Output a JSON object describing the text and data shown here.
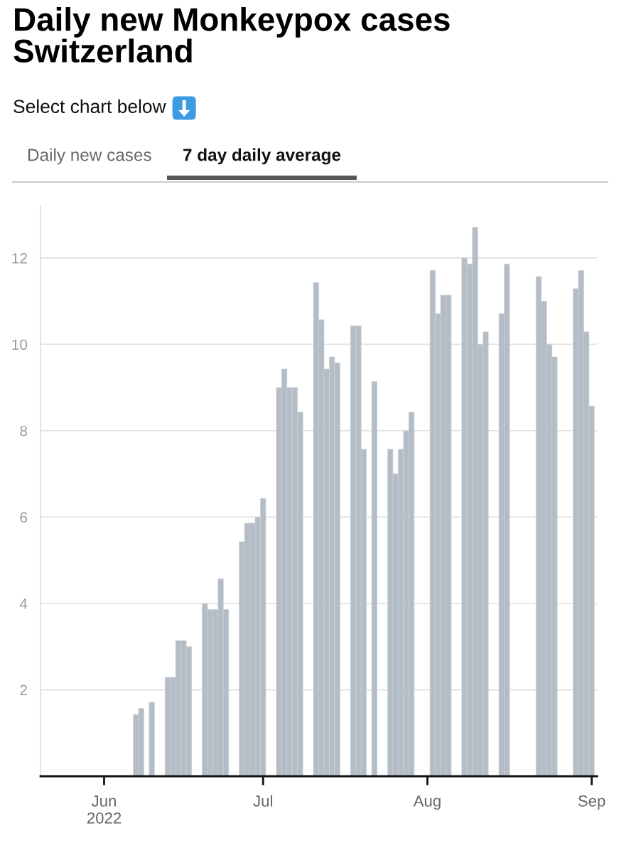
{
  "chart_data": {
    "type": "bar",
    "title": "Daily new Monkeypox cases Switzerland",
    "subtitle": "Select chart below",
    "annotations": [
      "Daily new cases",
      "7 day daily average"
    ],
    "x": [
      "2022-06-07",
      "2022-06-08",
      "2022-06-10",
      "2022-06-13",
      "2022-06-14",
      "2022-06-15",
      "2022-06-16",
      "2022-06-17",
      "2022-06-20",
      "2022-06-21",
      "2022-06-22",
      "2022-06-23",
      "2022-06-24",
      "2022-06-27",
      "2022-06-28",
      "2022-06-29",
      "2022-06-30",
      "2022-07-01",
      "2022-07-04",
      "2022-07-05",
      "2022-07-06",
      "2022-07-07",
      "2022-07-08",
      "2022-07-11",
      "2022-07-12",
      "2022-07-13",
      "2022-07-14",
      "2022-07-15",
      "2022-07-18",
      "2022-07-19",
      "2022-07-20",
      "2022-07-22",
      "2022-07-25",
      "2022-07-26",
      "2022-07-27",
      "2022-07-28",
      "2022-07-29",
      "2022-08-02",
      "2022-08-03",
      "2022-08-04",
      "2022-08-05",
      "2022-08-08",
      "2022-08-09",
      "2022-08-10",
      "2022-08-11",
      "2022-08-12",
      "2022-08-15",
      "2022-08-16",
      "2022-08-22",
      "2022-08-23",
      "2022-08-24",
      "2022-08-25",
      "2022-08-29",
      "2022-08-30",
      "2022-08-31",
      "2022-09-01"
    ],
    "values": [
      1.43,
      1.57,
      1.71,
      2.29,
      2.29,
      3.14,
      3.14,
      3.0,
      4.0,
      3.86,
      3.86,
      4.57,
      3.86,
      5.43,
      5.86,
      5.86,
      6.0,
      6.43,
      9.0,
      9.43,
      9.0,
      9.0,
      8.43,
      11.43,
      10.57,
      9.43,
      9.71,
      9.57,
      10.43,
      10.43,
      7.57,
      9.14,
      7.57,
      7.0,
      7.57,
      8.0,
      8.43,
      11.71,
      10.71,
      11.14,
      11.14,
      12.0,
      11.86,
      12.71,
      10.0,
      10.29,
      10.71,
      11.86,
      11.57,
      11.0,
      10.0,
      9.71,
      11.29,
      11.71,
      10.29,
      8.57
    ],
    "color": "#b4bdc5",
    "xlim": [
      "2022-05-20",
      "2022-09-02"
    ],
    "xticks": [
      {
        "value": "2022-06-01",
        "label": "Jun\n2022"
      },
      {
        "value": "2022-07-01",
        "label": "Jul"
      },
      {
        "value": "2022-08-01",
        "label": "Aug"
      },
      {
        "value": "2022-09-01",
        "label": "Sep"
      }
    ],
    "ylim": [
      0,
      13.2
    ],
    "yticks": [
      2,
      4,
      6,
      8,
      10,
      12
    ],
    "grid": "y"
  }
}
